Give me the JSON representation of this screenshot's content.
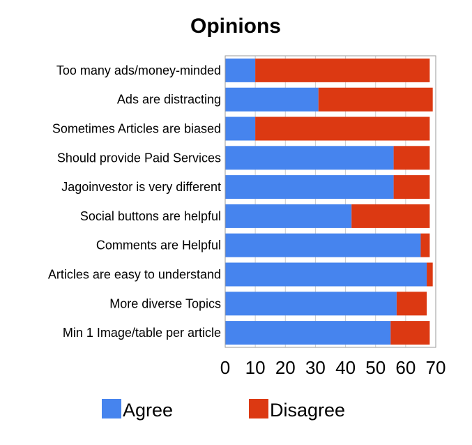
{
  "chart_data": {
    "type": "bar",
    "orientation": "horizontal",
    "stacked": true,
    "title": "Opinions",
    "categories": [
      "Too many ads/money-minded",
      "Ads are distracting",
      "Sometimes Articles are biased",
      "Should provide Paid Services",
      "Jagoinvestor is very different",
      "Social buttons are helpful",
      "Comments are Helpful",
      "Articles are easy to understand",
      "More diverse Topics",
      "Min 1 Image/table per article"
    ],
    "series": [
      {
        "name": "Agree",
        "color": "#4684ee",
        "values": [
          10,
          31,
          10,
          56,
          56,
          42,
          65,
          67,
          57,
          55
        ]
      },
      {
        "name": "Disagree",
        "color": "#dc3912",
        "values": [
          58,
          38,
          58,
          12,
          12,
          26,
          3,
          2,
          10,
          13
        ]
      }
    ],
    "xlim": [
      0,
      70
    ],
    "xticks": [
      "0",
      "10",
      "20",
      "30",
      "40",
      "50",
      "60",
      "70"
    ],
    "xlabel": "",
    "ylabel": "",
    "grid": true,
    "legend_position": "bottom"
  }
}
